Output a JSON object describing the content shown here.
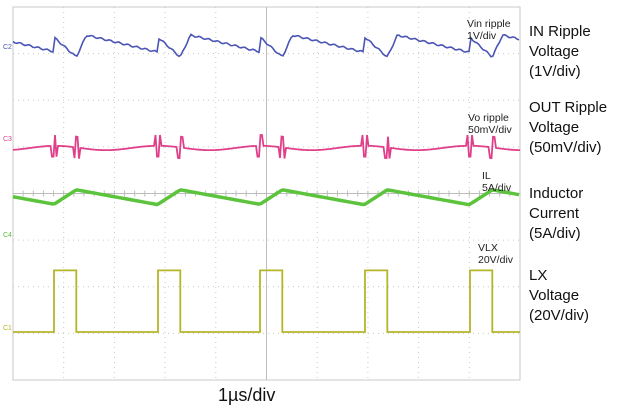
{
  "chart_data": {
    "type": "line",
    "xlabel": "1µs/div",
    "grid": true,
    "x_divisions": 10,
    "x_unit": "µs",
    "x_range": [
      0,
      10
    ],
    "switching_period_us": 2.0,
    "duty_cycle": 0.22,
    "series": [
      {
        "channel": "C2",
        "in_label": "Vin ripple\n1V/div",
        "side_label": "IN Ripple\nVoltage\n(1V/div)",
        "color": "#4a55b5",
        "values": [
          0.35,
          -0.45,
          -0.35,
          0.38,
          0.45,
          0.3,
          0.15,
          0.0,
          -0.15,
          -0.3
        ]
      },
      {
        "channel": "C3",
        "in_label": "Vo ripple\n50mV/div",
        "side_label": "OUT Ripple\nVoltage\n(50mV/div)",
        "color": "#e0408a",
        "values": [
          -0.1,
          -0.25,
          0.15,
          0.1,
          0.05,
          -0.05,
          0.12,
          0.3
        ]
      },
      {
        "channel": "C4",
        "in_label": "IL\n5A/div",
        "side_label": "Inductor\nCurrent\n(5A/div)",
        "color": "#5cc43c",
        "values": [
          -0.9,
          0.9
        ]
      },
      {
        "channel": "C1",
        "in_label": "VLX\n20V/div",
        "side_label": "LX\nVoltage\n(20V/div)",
        "color": "#b5b52a",
        "values": [
          0,
          2.8
        ]
      }
    ],
    "colors": {
      "grid": "#c8c8c8",
      "frame": "#c8c8c8"
    }
  }
}
